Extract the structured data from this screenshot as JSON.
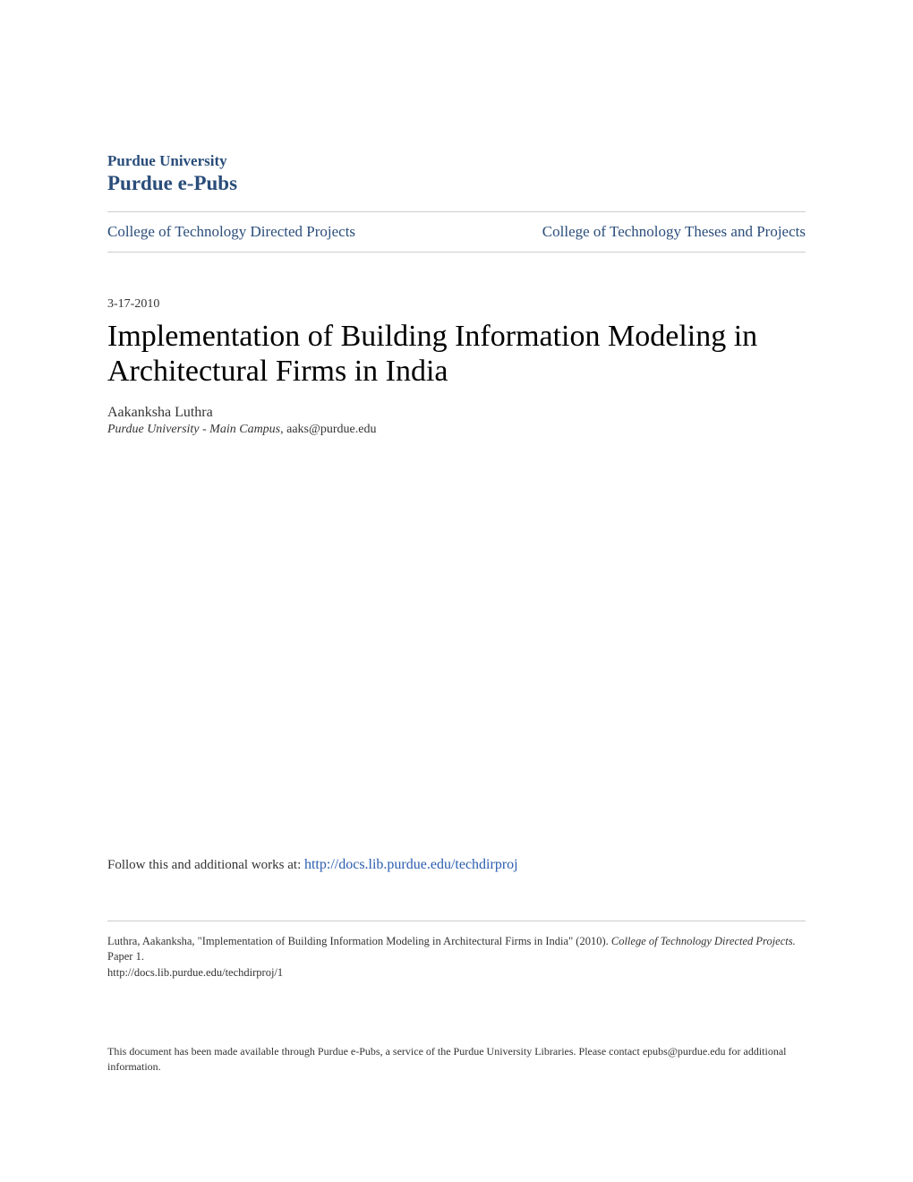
{
  "header": {
    "institution": "Purdue University",
    "repository": "Purdue e-Pubs"
  },
  "nav": {
    "left_link": "College of Technology Directed Projects",
    "right_link": "College of Technology Theses and Projects"
  },
  "article": {
    "date": "3-17-2010",
    "title": "Implementation of Building Information Modeling in Architectural Firms in India",
    "author": "Aakanksha Luthra",
    "affiliation_org": "Purdue University - Main Campus",
    "affiliation_email": ", aaks@purdue.edu"
  },
  "follow": {
    "prefix": "Follow this and additional works at: ",
    "url": "http://docs.lib.purdue.edu/techdirproj"
  },
  "citation": {
    "text_part1": "Luthra, Aakanksha, \"Implementation of Building Information Modeling in Architectural Firms in India\" (2010). ",
    "series": "College of Technology Directed Projects.",
    "text_part2": " Paper 1.",
    "url": "http://docs.lib.purdue.edu/techdirproj/1"
  },
  "disclaimer": {
    "text": "This document has been made available through Purdue e-Pubs, a service of the Purdue University Libraries. Please contact epubs@purdue.edu for additional information."
  },
  "colors": {
    "brand_blue": "#2a4d7a",
    "link_blue": "#2a5db0",
    "text_dark": "#333333",
    "border_gray": "#cccccc",
    "background": "#ffffff"
  },
  "typography": {
    "font_family": "Georgia, Times New Roman, serif",
    "institution_size": 17,
    "repository_size": 23,
    "nav_size": 17,
    "date_size": 14,
    "title_size": 34,
    "author_size": 16,
    "affiliation_size": 14,
    "follow_size": 15,
    "citation_size": 12.5,
    "disclaimer_size": 12
  }
}
